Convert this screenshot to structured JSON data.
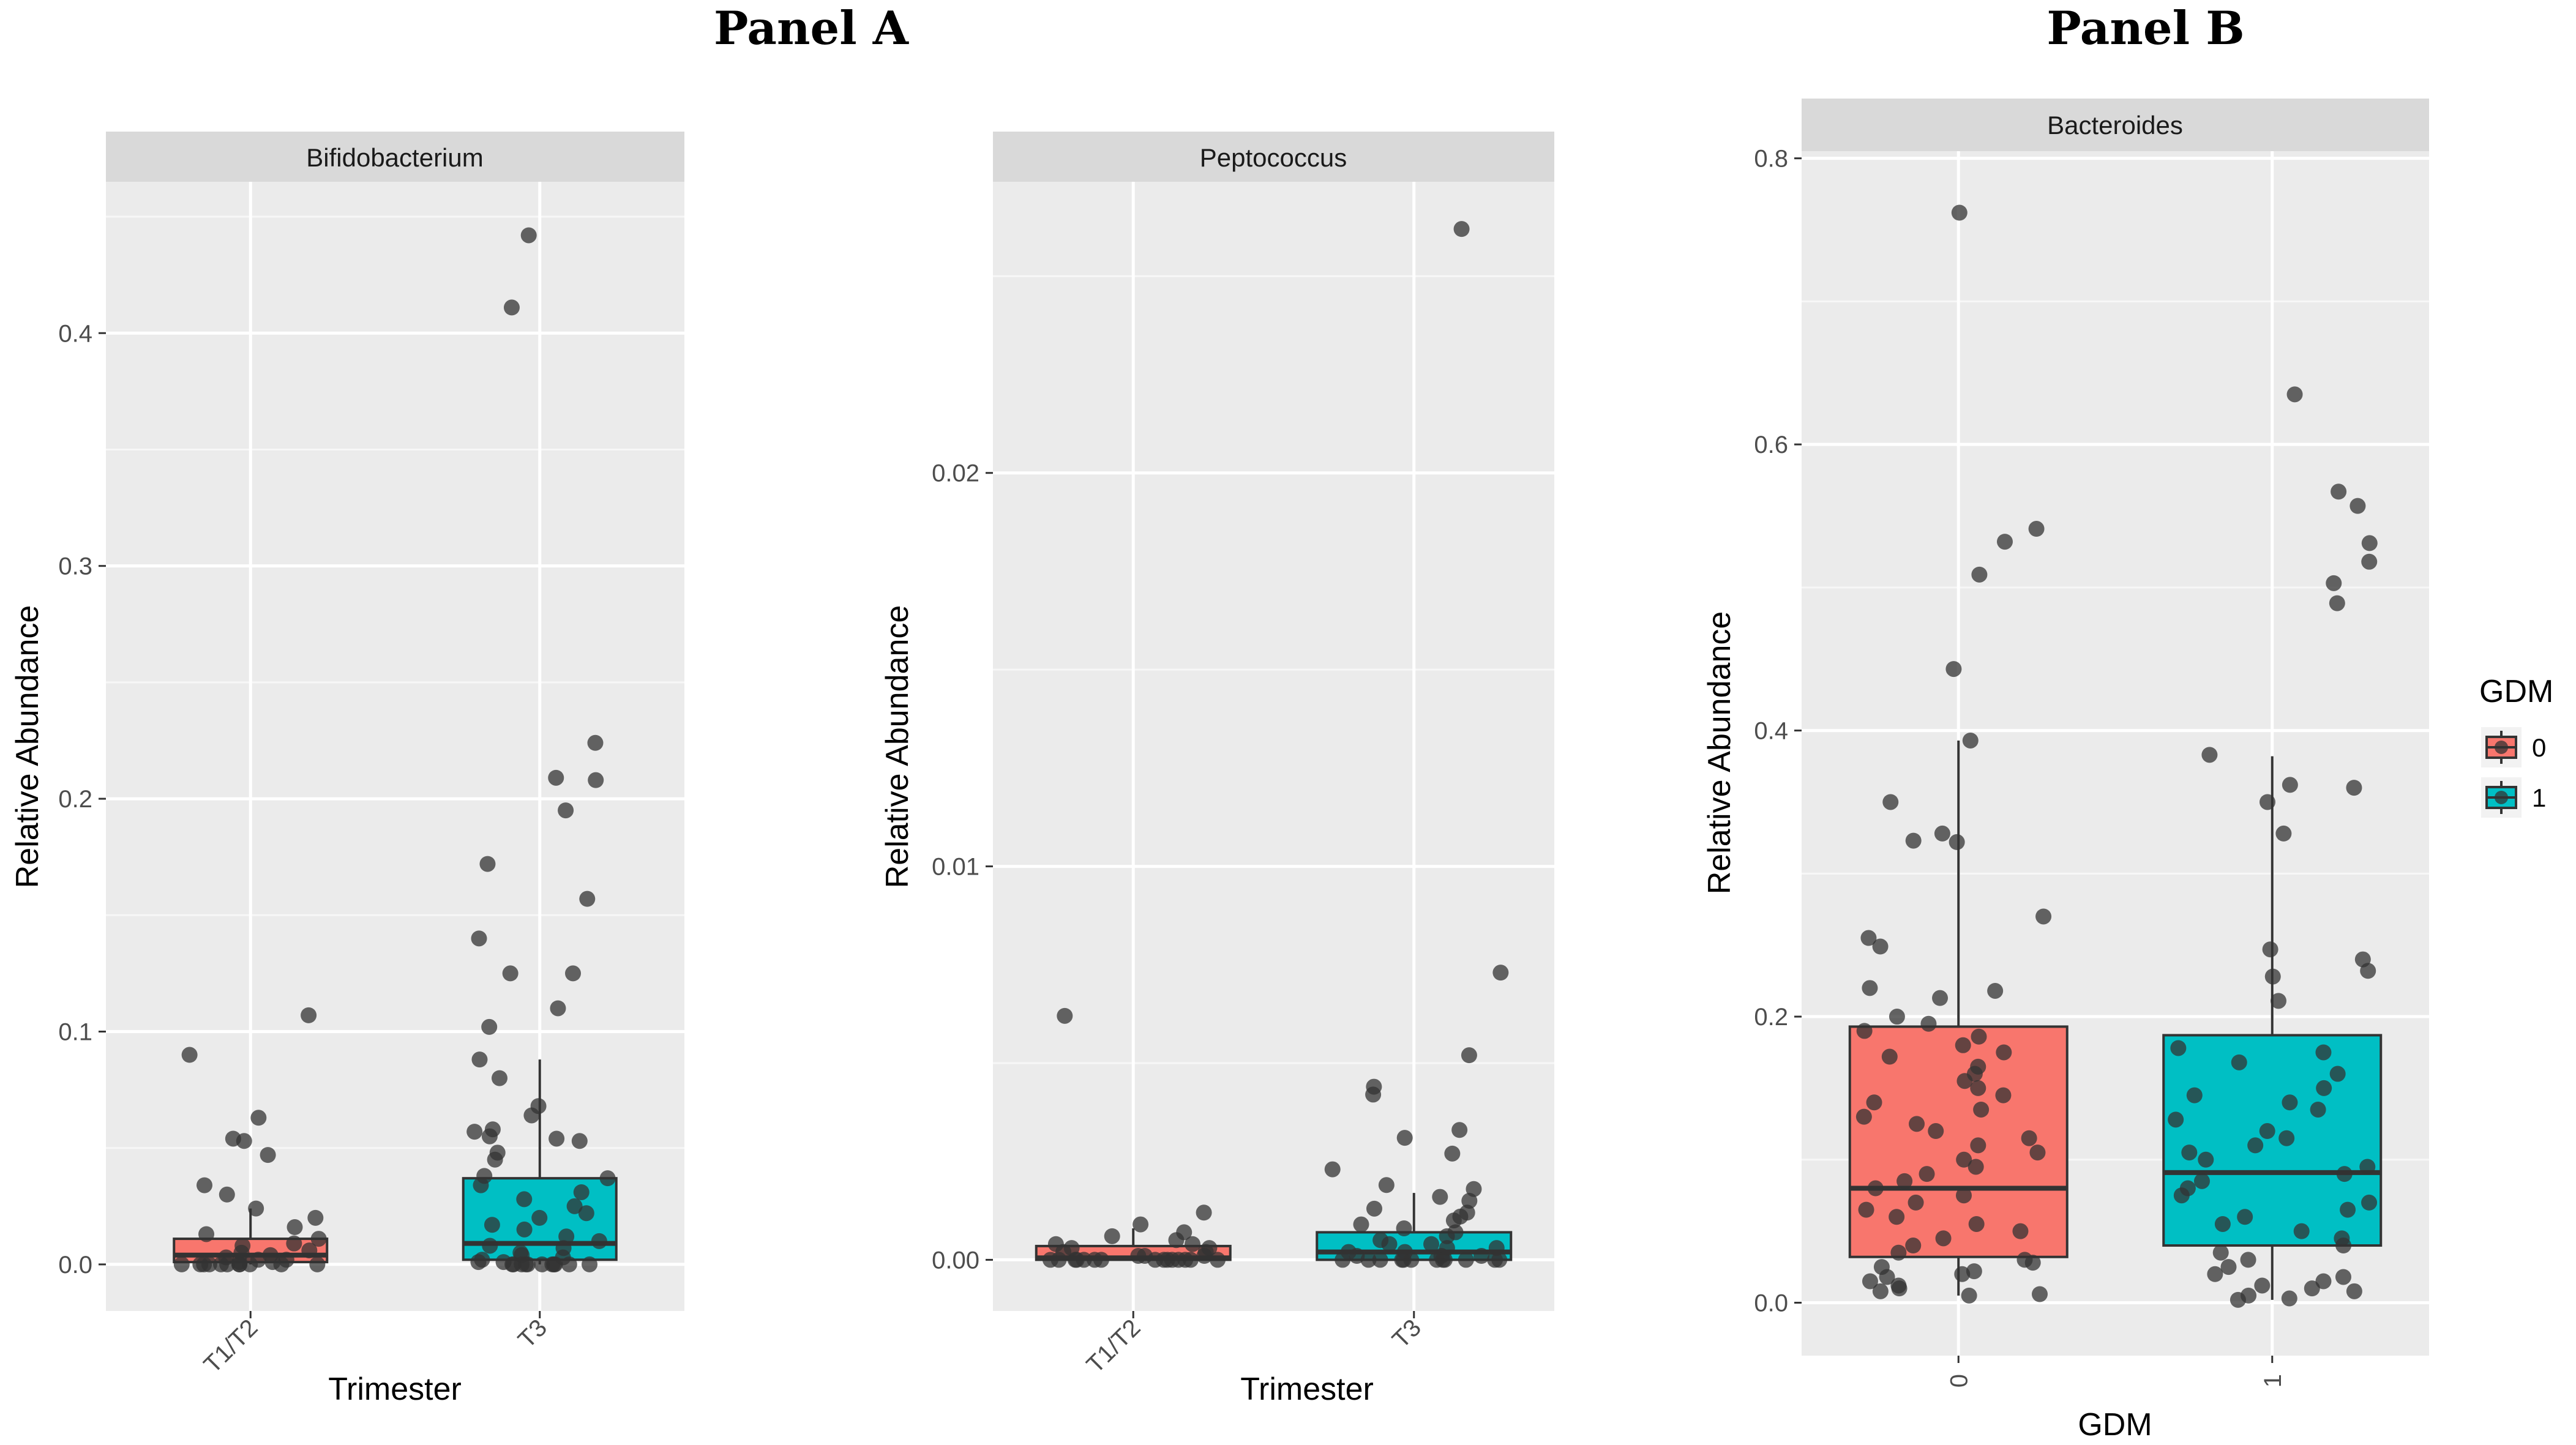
{
  "panel_titles": [
    "Panel A",
    "Panel B"
  ],
  "colors": {
    "group1": "#F8766D",
    "group2": "#00BFC4",
    "panel_bg": "#EBEBEB",
    "strip_bg": "#D9D9D9",
    "point": "#333333"
  },
  "legend": {
    "title": "GDM",
    "items": [
      {
        "label": "0",
        "color": "#F8766D"
      },
      {
        "label": "1",
        "color": "#00BFC4"
      }
    ]
  },
  "chart_data": [
    {
      "type": "box",
      "panel": "Panel A",
      "title": "Bifidobacterium",
      "xlabel": "Trimester",
      "ylabel": "Relative Abundance",
      "categories": [
        "T1/T2",
        "T3"
      ],
      "ylim": [
        -0.02,
        0.465
      ],
      "yticks": [
        0.0,
        0.1,
        0.2,
        0.3,
        0.4
      ],
      "ytick_labels": [
        "0.0",
        "0.1",
        "0.2",
        "0.3",
        "0.4"
      ],
      "boxes": [
        {
          "category": "T1/T2",
          "q1": 0.001,
          "median": 0.004,
          "q3": 0.011,
          "whisker_low": 0.0,
          "whisker_high": 0.024
        },
        {
          "category": "T3",
          "q1": 0.002,
          "median": 0.009,
          "q3": 0.037,
          "whisker_low": 0.0,
          "whisker_high": 0.088
        }
      ],
      "points": [
        {
          "category": "T1/T2",
          "values": [
            0.107,
            0.09,
            0.063,
            0.054,
            0.053,
            0.047,
            0.034,
            0.03,
            0.024,
            0.02,
            0.016,
            0.013,
            0.011,
            0.009,
            0.008,
            0.006,
            0.005,
            0.004,
            0.003,
            0.002,
            0.002,
            0.001,
            0.001,
            0.0,
            0.0,
            0.0,
            0.0,
            0.0,
            0.0,
            0.0,
            0.0,
            0.0,
            0.0,
            0.0
          ]
        },
        {
          "category": "T3",
          "values": [
            0.442,
            0.411,
            0.224,
            0.209,
            0.208,
            0.195,
            0.172,
            0.157,
            0.14,
            0.125,
            0.125,
            0.11,
            0.102,
            0.088,
            0.08,
            0.068,
            0.064,
            0.058,
            0.057,
            0.055,
            0.054,
            0.053,
            0.048,
            0.045,
            0.038,
            0.037,
            0.034,
            0.031,
            0.028,
            0.025,
            0.022,
            0.02,
            0.017,
            0.015,
            0.012,
            0.01,
            0.008,
            0.007,
            0.005,
            0.004,
            0.003,
            0.002,
            0.001,
            0.001,
            0.0,
            0.0,
            0.0,
            0.0,
            0.0,
            0.0,
            0.0,
            0.0,
            0.0,
            0.0,
            0.0
          ]
        }
      ]
    },
    {
      "type": "box",
      "panel": "Panel A",
      "title": "Peptococcus",
      "xlabel": "Trimester",
      "ylabel": "Relative Abundance",
      "categories": [
        "T1/T2",
        "T3"
      ],
      "ylim": [
        -0.0013,
        0.0274
      ],
      "yticks": [
        0.0,
        0.01,
        0.02
      ],
      "ytick_labels": [
        "0.00",
        "0.01",
        "0.02"
      ],
      "boxes": [
        {
          "category": "T1/T2",
          "q1": 0.0,
          "median": 5e-05,
          "q3": 0.00035,
          "whisker_low": 0.0,
          "whisker_high": 0.0008
        },
        {
          "category": "T3",
          "q1": 0.0,
          "median": 0.0002,
          "q3": 0.0007,
          "whisker_low": 0.0,
          "whisker_high": 0.0017
        }
      ],
      "points": [
        {
          "category": "T1/T2",
          "values": [
            0.0062,
            0.0012,
            0.0009,
            0.0007,
            0.0006,
            0.0005,
            0.0004,
            0.0004,
            0.0003,
            0.0003,
            0.0002,
            0.0002,
            0.0001,
            0.0001,
            0.0001,
            0.0,
            0.0,
            0.0,
            0.0,
            0.0,
            0.0,
            0.0,
            0.0,
            0.0,
            0.0,
            0.0,
            0.0,
            0.0,
            0.0,
            0.0
          ]
        },
        {
          "category": "T3",
          "values": [
            0.0262,
            0.0073,
            0.0052,
            0.0044,
            0.0042,
            0.0033,
            0.0031,
            0.0027,
            0.0023,
            0.0019,
            0.0018,
            0.0016,
            0.0015,
            0.0013,
            0.0012,
            0.0011,
            0.001,
            0.0009,
            0.0008,
            0.0007,
            0.0006,
            0.0005,
            0.0004,
            0.0004,
            0.0003,
            0.0003,
            0.0002,
            0.0002,
            0.0001,
            0.0001,
            0.0001,
            0.0,
            0.0,
            0.0,
            0.0,
            0.0,
            0.0,
            0.0,
            0.0,
            0.0,
            0.0,
            0.0,
            0.0
          ]
        }
      ]
    },
    {
      "type": "box",
      "panel": "Panel B",
      "title": "Bacteroides",
      "xlabel": "GDM",
      "ylabel": "Relative Abundance",
      "categories": [
        "0",
        "1"
      ],
      "ylim": [
        -0.037,
        0.805
      ],
      "yticks": [
        0.0,
        0.2,
        0.4,
        0.6,
        0.8
      ],
      "ytick_labels": [
        "0.0",
        "0.2",
        "0.4",
        "0.6",
        "0.8"
      ],
      "boxes": [
        {
          "category": "0",
          "q1": 0.032,
          "median": 0.08,
          "q3": 0.193,
          "whisker_low": 0.005,
          "whisker_high": 0.393
        },
        {
          "category": "1",
          "q1": 0.04,
          "median": 0.091,
          "q3": 0.187,
          "whisker_low": 0.002,
          "whisker_high": 0.382
        }
      ],
      "points": [
        {
          "category": "0",
          "values": [
            0.762,
            0.541,
            0.532,
            0.509,
            0.443,
            0.393,
            0.35,
            0.328,
            0.323,
            0.322,
            0.27,
            0.255,
            0.249,
            0.22,
            0.218,
            0.213,
            0.2,
            0.195,
            0.19,
            0.186,
            0.18,
            0.175,
            0.172,
            0.165,
            0.16,
            0.155,
            0.15,
            0.145,
            0.14,
            0.135,
            0.13,
            0.125,
            0.12,
            0.115,
            0.11,
            0.105,
            0.1,
            0.095,
            0.09,
            0.085,
            0.08,
            0.075,
            0.07,
            0.065,
            0.06,
            0.055,
            0.05,
            0.045,
            0.04,
            0.035,
            0.03,
            0.028,
            0.025,
            0.022,
            0.02,
            0.018,
            0.015,
            0.012,
            0.01,
            0.008,
            0.006,
            0.005
          ]
        },
        {
          "category": "1",
          "values": [
            0.635,
            0.567,
            0.557,
            0.531,
            0.518,
            0.503,
            0.489,
            0.383,
            0.362,
            0.36,
            0.35,
            0.328,
            0.247,
            0.24,
            0.232,
            0.228,
            0.211,
            0.178,
            0.175,
            0.168,
            0.16,
            0.15,
            0.145,
            0.14,
            0.135,
            0.128,
            0.12,
            0.115,
            0.11,
            0.105,
            0.1,
            0.095,
            0.09,
            0.085,
            0.08,
            0.075,
            0.07,
            0.065,
            0.06,
            0.055,
            0.05,
            0.045,
            0.04,
            0.035,
            0.03,
            0.025,
            0.02,
            0.018,
            0.015,
            0.012,
            0.01,
            0.008,
            0.005,
            0.003,
            0.002
          ]
        }
      ]
    }
  ]
}
